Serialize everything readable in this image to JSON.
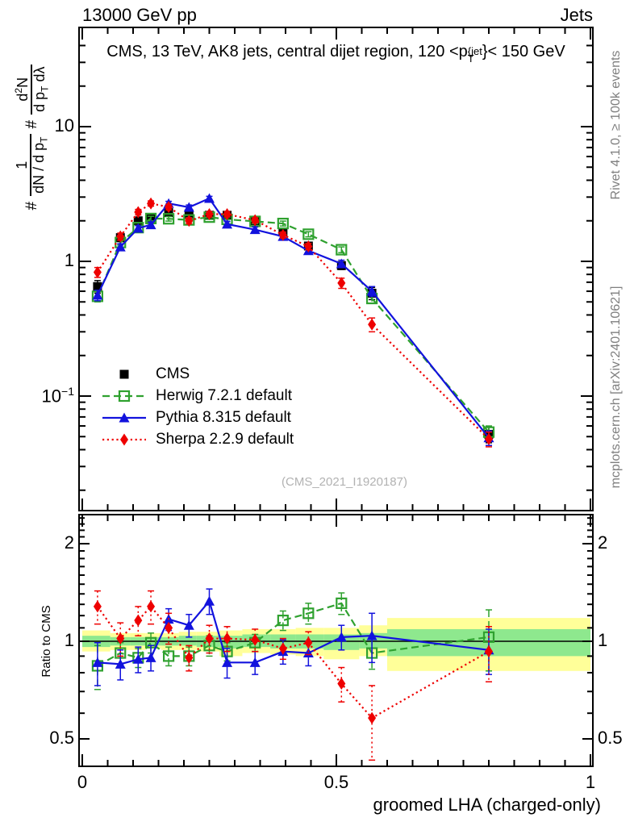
{
  "header": {
    "left": "13000 GeV pp",
    "right": "Jets"
  },
  "title_parts": {
    "a": "CMS, 13 TeV, AK8 jets, central dijet region, 120 <p",
    "sup": "{jet",
    "sub": "T",
    "b": "}< 150 GeV"
  },
  "watermark": "(CMS_2021_I1920187)",
  "side_notes": {
    "rivet": "Rivet 4.1.0, ≥ 100k events",
    "mcplots": "mcplots.cern.ch [arXiv:2401.10621]"
  },
  "axes": {
    "x_label": "groomed LHA (charged-only)",
    "x_ticks": [
      "0",
      "0.5",
      "1"
    ],
    "y_ticks_main": {
      "t10": "10",
      "t1": "1",
      "texp_base": "10",
      "texp": "−1"
    },
    "ratio_ticks": [
      "2",
      "1",
      "0.5"
    ],
    "ratio_label": "Ratio to CMS",
    "ylabel_parts": {
      "h1": "#",
      "f1_num": "1",
      "f1_den_a": "dN / d p",
      "f1_den_sub": "T",
      "h2": "#",
      "f2_num_a": "d",
      "f2_num_sup": "2",
      "f2_num_b": "N",
      "f2_den_a": "d p",
      "f2_den_sub": "T",
      "f2_den_b": " dλ"
    }
  },
  "chart_data": {
    "type": "line",
    "x_scale": "linear",
    "y_scale": "log",
    "x_range": [
      0,
      1
    ],
    "y_range_main": [
      0.015,
      50
    ],
    "ratio_range": [
      0.42,
      2.43
    ],
    "x_label": "groomed LHA (charged-only)",
    "bin_centers": [
      0.03,
      0.075,
      0.11,
      0.135,
      0.17,
      0.21,
      0.25,
      0.285,
      0.34,
      0.395,
      0.445,
      0.51,
      0.57,
      0.8
    ],
    "bin_edges": [
      0.0,
      0.055,
      0.095,
      0.125,
      0.155,
      0.19,
      0.225,
      0.27,
      0.315,
      0.37,
      0.42,
      0.475,
      0.545,
      0.6,
      1.0
    ],
    "series": [
      {
        "label": "CMS",
        "color": "#000000",
        "marker": "filled-square",
        "line": "none",
        "values": [
          0.65,
          1.5,
          2.0,
          2.1,
          2.3,
          2.25,
          2.2,
          2.2,
          2.0,
          1.65,
          1.3,
          0.93,
          0.58,
          0.052
        ],
        "errors": [
          0.07,
          0.1,
          0.12,
          0.12,
          0.12,
          0.11,
          0.11,
          0.11,
          0.1,
          0.09,
          0.08,
          0.06,
          0.06,
          0.007
        ]
      },
      {
        "label": "Herwig 7.2.1 default",
        "color": "#2fa12f",
        "marker": "open-square",
        "line": "dashed",
        "values": [
          0.55,
          1.38,
          1.78,
          2.08,
          2.07,
          2.03,
          2.13,
          2.05,
          1.98,
          1.91,
          1.59,
          1.22,
          0.53,
          0.054
        ],
        "errors": [
          0.05,
          0.06,
          0.07,
          0.08,
          0.08,
          0.08,
          0.08,
          0.08,
          0.08,
          0.08,
          0.07,
          0.06,
          0.04,
          0.006
        ],
        "ratio": [
          0.84,
          0.92,
          0.89,
          0.99,
          0.9,
          0.9,
          0.97,
          0.93,
          0.99,
          1.16,
          1.22,
          1.31,
          0.92,
          1.03
        ],
        "ratio_errors": [
          0.13,
          0.07,
          0.06,
          0.07,
          0.06,
          0.06,
          0.07,
          0.06,
          0.06,
          0.08,
          0.09,
          0.1,
          0.1,
          0.22
        ]
      },
      {
        "label": "Pythia 8.315 default",
        "color": "#1212dd",
        "marker": "filled-triangle",
        "line": "solid",
        "values": [
          0.56,
          1.28,
          1.76,
          1.87,
          2.69,
          2.52,
          2.93,
          1.89,
          1.72,
          1.53,
          1.2,
          0.96,
          0.6,
          0.049
        ],
        "errors": [
          0.05,
          0.07,
          0.08,
          0.08,
          0.1,
          0.1,
          0.11,
          0.09,
          0.08,
          0.08,
          0.07,
          0.06,
          0.05,
          0.006
        ],
        "ratio": [
          0.86,
          0.85,
          0.88,
          0.89,
          1.17,
          1.12,
          1.33,
          0.86,
          0.86,
          0.93,
          0.92,
          1.03,
          1.04,
          0.94
        ],
        "ratio_errors": [
          0.13,
          0.09,
          0.08,
          0.08,
          0.09,
          0.09,
          0.12,
          0.09,
          0.07,
          0.08,
          0.08,
          0.09,
          0.18,
          0.15
        ]
      },
      {
        "label": "Sherpa 2.2.9 default",
        "color": "#ee0000",
        "marker": "filled-diamond",
        "line": "dotted",
        "values": [
          0.83,
          1.53,
          2.32,
          2.69,
          2.53,
          2.0,
          2.24,
          2.24,
          2.02,
          1.57,
          1.29,
          0.69,
          0.34,
          0.048
        ],
        "errors": [
          0.07,
          0.09,
          0.11,
          0.12,
          0.12,
          0.1,
          0.1,
          0.1,
          0.09,
          0.08,
          0.07,
          0.06,
          0.04,
          0.006
        ],
        "ratio": [
          1.28,
          1.02,
          1.16,
          1.28,
          1.1,
          0.89,
          1.02,
          1.02,
          1.01,
          0.95,
          0.99,
          0.74,
          0.58,
          0.93
        ],
        "ratio_errors": [
          0.15,
          0.12,
          0.12,
          0.15,
          0.12,
          0.08,
          0.1,
          0.09,
          0.08,
          0.07,
          0.08,
          0.09,
          0.15,
          0.18
        ]
      }
    ],
    "uncertainty_bands": {
      "yellow_color": "#ffff99",
      "green_color": "#8ee88e",
      "yellow": [
        [
          0.93,
          1.08
        ],
        [
          0.94,
          1.06
        ],
        [
          0.94,
          1.06
        ],
        [
          0.95,
          1.06
        ],
        [
          0.94,
          1.06
        ],
        [
          0.94,
          1.07
        ],
        [
          0.93,
          1.07
        ],
        [
          0.9,
          1.08
        ],
        [
          0.92,
          1.09
        ],
        [
          0.91,
          1.09
        ],
        [
          0.9,
          1.1
        ],
        [
          0.88,
          1.1
        ],
        [
          0.9,
          1.12
        ],
        [
          0.81,
          1.18
        ]
      ],
      "green": [
        [
          0.96,
          1.04
        ],
        [
          0.97,
          1.03
        ],
        [
          0.97,
          1.03
        ],
        [
          0.97,
          1.03
        ],
        [
          0.97,
          1.03
        ],
        [
          0.97,
          1.04
        ],
        [
          0.96,
          1.04
        ],
        [
          0.95,
          1.04
        ],
        [
          0.96,
          1.05
        ],
        [
          0.95,
          1.05
        ],
        [
          0.95,
          1.05
        ],
        [
          0.94,
          1.05
        ],
        [
          0.95,
          1.06
        ],
        [
          0.9,
          1.09
        ]
      ]
    }
  }
}
